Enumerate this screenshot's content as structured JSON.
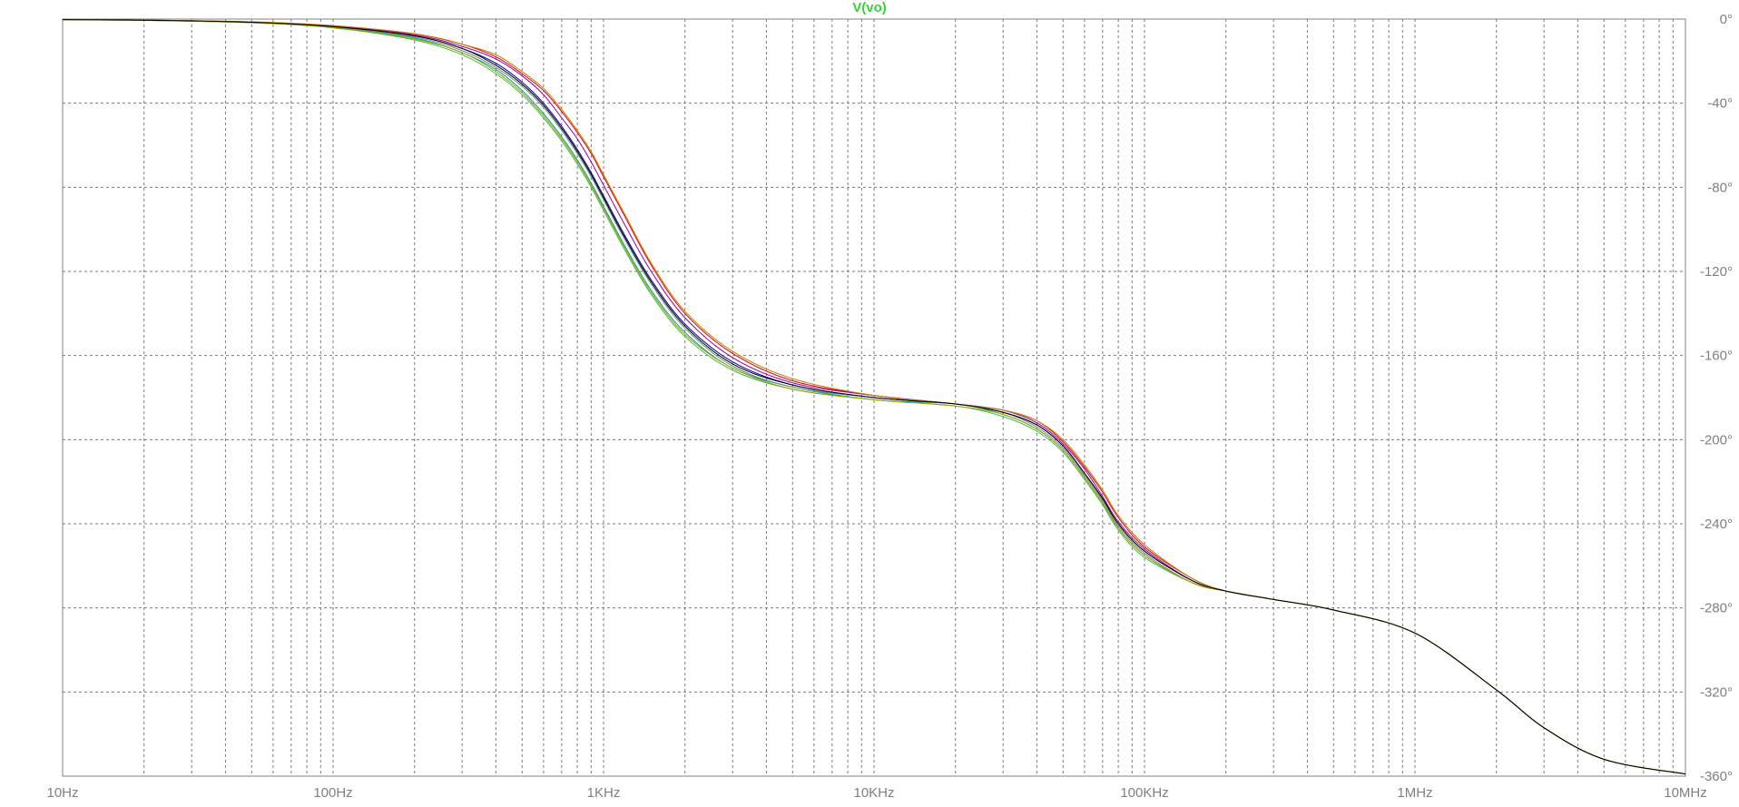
{
  "trace_label": "V(vo)",
  "chart_data": {
    "type": "line",
    "title": "V(vo)",
    "xscale": "log",
    "xlim": [
      10,
      10000000
    ],
    "ylim": [
      -360,
      0
    ],
    "grid": true,
    "grid_style": "dashed",
    "x_ticks": [
      {
        "value": 10,
        "label": "10Hz"
      },
      {
        "value": 100,
        "label": "100Hz"
      },
      {
        "value": 1000,
        "label": "1KHz"
      },
      {
        "value": 10000,
        "label": "10KHz"
      },
      {
        "value": 100000,
        "label": "100KHz"
      },
      {
        "value": 1000000,
        "label": "1MHz"
      },
      {
        "value": 10000000,
        "label": "10MHz"
      }
    ],
    "y_ticks": [
      {
        "value": 0,
        "label": "0°"
      },
      {
        "value": -40,
        "label": "-40°"
      },
      {
        "value": -80,
        "label": "-80°"
      },
      {
        "value": -120,
        "label": "-120°"
      },
      {
        "value": -160,
        "label": "-160°"
      },
      {
        "value": -200,
        "label": "-200°"
      },
      {
        "value": -240,
        "label": "-240°"
      },
      {
        "value": -280,
        "label": "-280°"
      },
      {
        "value": -320,
        "label": "-320°"
      },
      {
        "value": -360,
        "label": "-360°"
      }
    ],
    "x": [
      10,
      20,
      50,
      100,
      200,
      300,
      400,
      500,
      600,
      700,
      800,
      900,
      1000,
      1200,
      1500,
      2000,
      3000,
      5000,
      10000,
      20000,
      30000,
      40000,
      50000,
      60000,
      70000,
      80000,
      100000,
      150000,
      200000,
      300000,
      500000,
      1000000,
      2000000,
      3000000,
      5000000,
      10000000
    ],
    "series": [
      {
        "color": "#0000b0",
        "values": [
          -0.2,
          -0.5,
          -1.5,
          -3.5,
          -8,
          -14,
          -21,
          -30,
          -40,
          -51,
          -62,
          -73,
          -84,
          -103,
          -124,
          -145,
          -163,
          -174,
          -180,
          -183,
          -187,
          -193,
          -203,
          -216,
          -228,
          -240,
          -253,
          -267,
          -272,
          -276,
          -281,
          -292,
          -319,
          -337,
          -352,
          -359
        ]
      },
      {
        "color": "#e00000",
        "values": [
          -0.2,
          -0.5,
          -1.4,
          -3.2,
          -7,
          -12,
          -18,
          -26,
          -34,
          -44,
          -54,
          -64,
          -75,
          -94,
          -117,
          -140,
          -159,
          -172,
          -179,
          -183,
          -186,
          -191,
          -201,
          -213,
          -225,
          -237,
          -251,
          -266,
          -272,
          -276,
          -281,
          -292,
          -319,
          -337,
          -352,
          -359
        ]
      },
      {
        "color": "#00a0a0",
        "values": [
          -0.3,
          -0.6,
          -1.7,
          -3.9,
          -9,
          -16,
          -24,
          -34,
          -45,
          -56,
          -67,
          -78,
          -89,
          -108,
          -129,
          -149,
          -166,
          -175,
          -181,
          -183,
          -188,
          -195,
          -205,
          -218,
          -230,
          -242,
          -255,
          -268,
          -272,
          -276,
          -281,
          -292,
          -319,
          -337,
          -352,
          -359
        ]
      },
      {
        "color": "#a000a0",
        "values": [
          -0.2,
          -0.5,
          -1.4,
          -3.3,
          -7.5,
          -13,
          -19,
          -27,
          -36,
          -47,
          -57,
          -68,
          -79,
          -98,
          -120,
          -142,
          -161,
          -173,
          -179,
          -183,
          -186,
          -192,
          -202,
          -214,
          -227,
          -239,
          -252,
          -267,
          -272,
          -276,
          -281,
          -292,
          -319,
          -337,
          -352,
          -359
        ]
      },
      {
        "color": "#40c040",
        "values": [
          -0.3,
          -0.6,
          -1.8,
          -4.2,
          -10,
          -17,
          -26,
          -36,
          -47,
          -58,
          -69,
          -80,
          -91,
          -110,
          -131,
          -151,
          -167,
          -176,
          -181,
          -184,
          -189,
          -196,
          -206,
          -219,
          -231,
          -243,
          -256,
          -268,
          -272,
          -276,
          -281,
          -292,
          -319,
          -337,
          -352,
          -359
        ]
      },
      {
        "color": "#808080",
        "values": [
          -0.3,
          -0.6,
          -1.6,
          -3.7,
          -8.5,
          -15,
          -23,
          -32,
          -42,
          -53,
          -64,
          -75,
          -86,
          -105,
          -126,
          -147,
          -165,
          -175,
          -180,
          -183,
          -187,
          -194,
          -204,
          -217,
          -229,
          -241,
          -254,
          -268,
          -272,
          -276,
          -281,
          -292,
          -319,
          -337,
          -352,
          -359
        ]
      },
      {
        "color": "#c08000",
        "values": [
          -0.2,
          -0.5,
          -1.3,
          -3.1,
          -7,
          -12,
          -17,
          -25,
          -33,
          -43,
          -53,
          -63,
          -74,
          -93,
          -116,
          -139,
          -158,
          -171,
          -179,
          -183,
          -186,
          -191,
          -200,
          -212,
          -224,
          -236,
          -250,
          -266,
          -272,
          -276,
          -281,
          -292,
          -319,
          -337,
          -352,
          -359
        ]
      },
      {
        "color": "#a0a000",
        "values": [
          -0.3,
          -0.6,
          -1.7,
          -4.0,
          -9.5,
          -16,
          -25,
          -35,
          -46,
          -57,
          -68,
          -79,
          -90,
          -109,
          -130,
          -150,
          -166,
          -176,
          -181,
          -184,
          -188,
          -195,
          -205,
          -218,
          -230,
          -242,
          -255,
          -268,
          -272,
          -276,
          -281,
          -292,
          -319,
          -337,
          -352,
          -359
        ]
      },
      {
        "color": "#000000",
        "values": [
          -0.25,
          -0.55,
          -1.5,
          -3.6,
          -8,
          -14,
          -22,
          -31,
          -41,
          -52,
          -63,
          -74,
          -85,
          -104,
          -125,
          -146,
          -164,
          -174,
          -180,
          -183,
          -187,
          -193,
          -203,
          -216,
          -228,
          -240,
          -253,
          -267,
          -272,
          -276,
          -281,
          -292,
          -319,
          -337,
          -352,
          -359
        ]
      }
    ]
  }
}
